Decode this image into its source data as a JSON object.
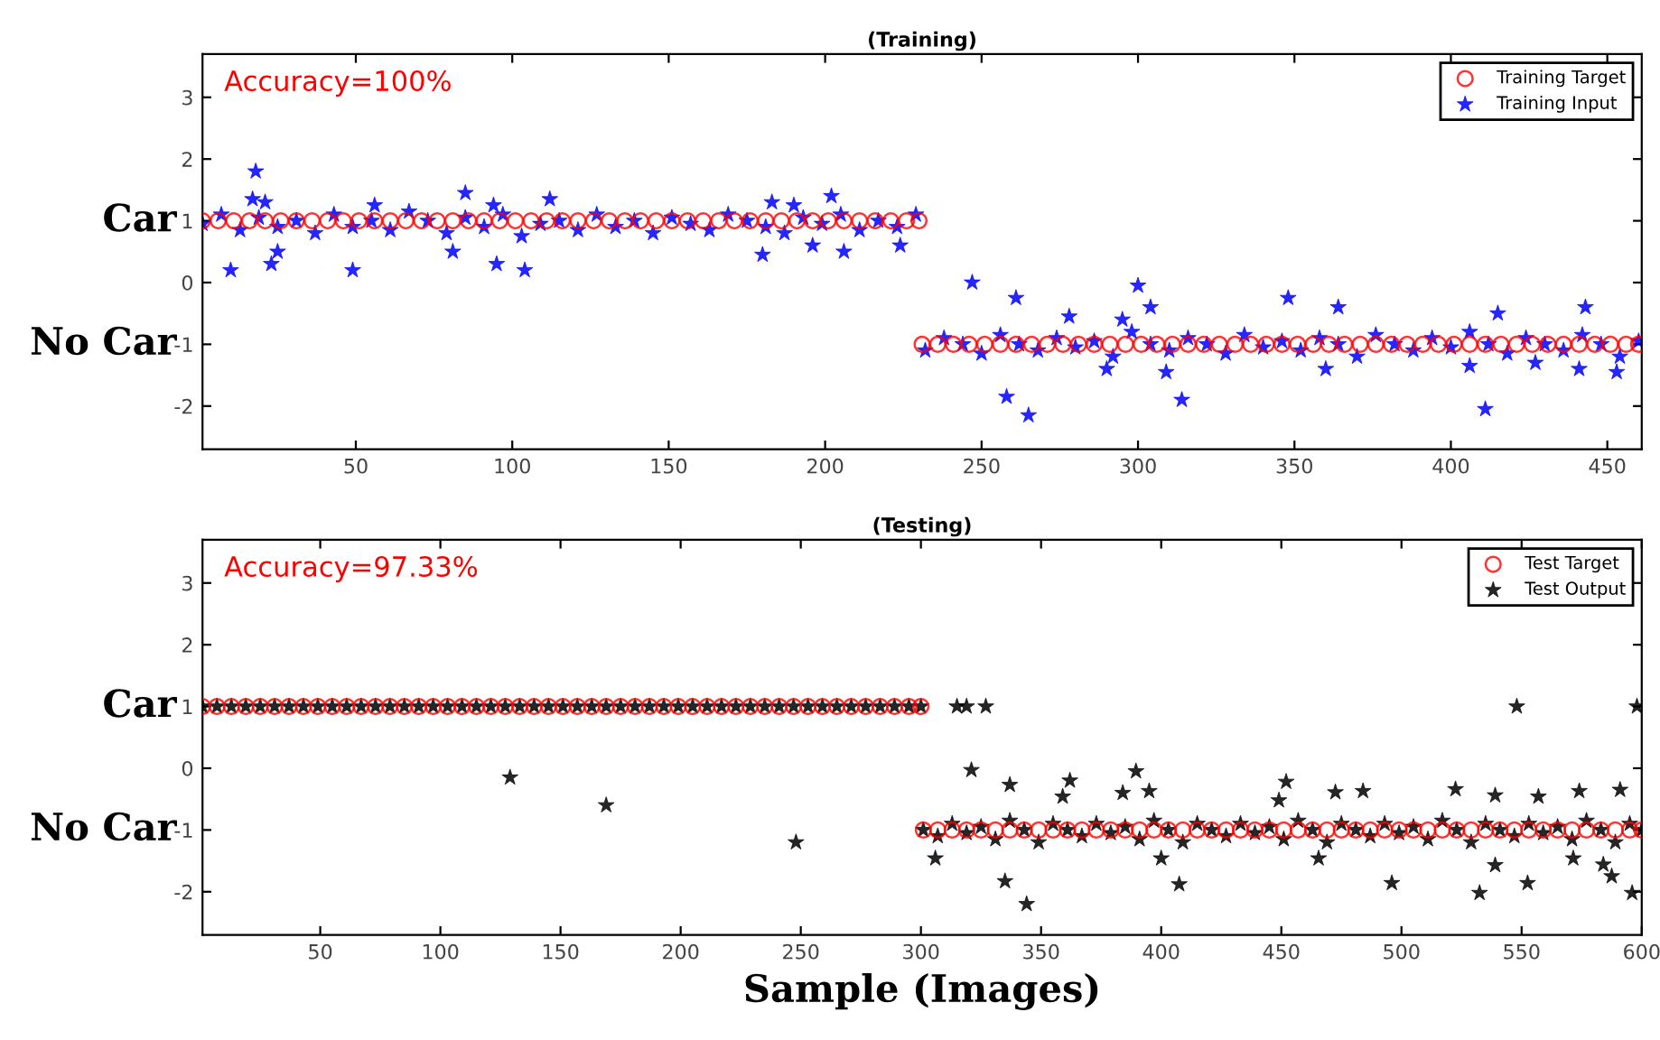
{
  "chart_data": [
    {
      "type": "scatter",
      "title": "(Training)",
      "xlim": [
        1,
        461
      ],
      "xticks": [
        50,
        100,
        150,
        200,
        250,
        300,
        350,
        400,
        450
      ],
      "ylim": [
        -2.7,
        3.7
      ],
      "yticks": [
        -2,
        -1,
        0,
        1,
        2,
        3
      ],
      "legend": "top right",
      "grid": false,
      "annotations": [
        "Accuracy=100%",
        "Car",
        "No Car"
      ],
      "series": [
        {
          "name": "Training Target",
          "color": "#ff0000",
          "marker": "circle",
          "x": [
            1,
            6,
            11,
            16,
            21,
            26,
            31,
            36,
            41,
            46,
            51,
            56,
            61,
            66,
            71,
            76,
            81,
            86,
            91,
            96,
            101,
            106,
            111,
            116,
            121,
            126,
            131,
            136,
            141,
            146,
            151,
            156,
            161,
            166,
            171,
            176,
            181,
            186,
            191,
            196,
            201,
            206,
            211,
            216,
            221,
            226,
            230,
            231,
            236,
            241,
            246,
            251,
            256,
            261,
            266,
            271,
            276,
            281,
            286,
            291,
            296,
            301,
            306,
            311,
            316,
            321,
            326,
            331,
            336,
            341,
            346,
            351,
            356,
            361,
            366,
            371,
            376,
            381,
            386,
            391,
            396,
            401,
            406,
            411,
            416,
            421,
            426,
            431,
            436,
            441,
            446,
            451,
            456,
            460
          ],
          "values": [
            1,
            1,
            1,
            1,
            1,
            1,
            1,
            1,
            1,
            1,
            1,
            1,
            1,
            1,
            1,
            1,
            1,
            1,
            1,
            1,
            1,
            1,
            1,
            1,
            1,
            1,
            1,
            1,
            1,
            1,
            1,
            1,
            1,
            1,
            1,
            1,
            1,
            1,
            1,
            1,
            1,
            1,
            1,
            1,
            1,
            1,
            1,
            -1,
            -1,
            -1,
            -1,
            -1,
            -1,
            -1,
            -1,
            -1,
            -1,
            -1,
            -1,
            -1,
            -1,
            -1,
            -1,
            -1,
            -1,
            -1,
            -1,
            -1,
            -1,
            -1,
            -1,
            -1,
            -1,
            -1,
            -1,
            -1,
            -1,
            -1,
            -1,
            -1,
            -1,
            -1,
            -1,
            -1,
            -1,
            -1,
            -1,
            -1,
            -1,
            -1,
            -1,
            -1,
            -1,
            -1
          ]
        },
        {
          "name": "Training Input",
          "color": "#0000ff",
          "marker": "star",
          "x": [
            1,
            7,
            13,
            19,
            25,
            31,
            37,
            43,
            49,
            55,
            61,
            67,
            73,
            79,
            85,
            91,
            97,
            103,
            109,
            115,
            121,
            127,
            133,
            139,
            145,
            151,
            157,
            163,
            169,
            175,
            181,
            187,
            193,
            199,
            205,
            211,
            217,
            223,
            229,
            10,
            18,
            17,
            21,
            23,
            25,
            49,
            56,
            81,
            85,
            94,
            95,
            104,
            112,
            180,
            183,
            190,
            196,
            202,
            206,
            224,
            232,
            238,
            244,
            250,
            256,
            262,
            268,
            274,
            280,
            286,
            292,
            298,
            304,
            310,
            316,
            322,
            328,
            334,
            340,
            346,
            352,
            358,
            364,
            370,
            376,
            382,
            388,
            394,
            400,
            406,
            412,
            418,
            424,
            430,
            436,
            442,
            448,
            454,
            460,
            247,
            258,
            261,
            265,
            278,
            290,
            295,
            300,
            304,
            309,
            314,
            348,
            360,
            364,
            406,
            411,
            415,
            427,
            441,
            443,
            453
          ],
          "values": [
            0.95,
            1.1,
            0.85,
            1.05,
            0.9,
            1.0,
            0.8,
            1.1,
            0.9,
            1.0,
            0.85,
            1.15,
            1.0,
            0.8,
            1.05,
            0.9,
            1.1,
            0.75,
            0.95,
            1.0,
            0.85,
            1.1,
            0.9,
            1.0,
            0.8,
            1.05,
            0.95,
            0.85,
            1.1,
            1.0,
            0.9,
            0.8,
            1.05,
            0.95,
            1.1,
            0.85,
            1.0,
            0.9,
            1.1,
            0.2,
            1.8,
            1.35,
            1.3,
            0.3,
            0.5,
            0.2,
            1.25,
            0.5,
            1.45,
            1.25,
            0.3,
            0.2,
            1.35,
            0.45,
            1.3,
            1.25,
            0.6,
            1.4,
            0.5,
            0.6,
            -1.1,
            -0.9,
            -1.0,
            -1.15,
            -0.85,
            -1.0,
            -1.1,
            -0.9,
            -1.05,
            -0.95,
            -1.2,
            -0.8,
            -1.0,
            -1.1,
            -0.9,
            -1.0,
            -1.15,
            -0.85,
            -1.05,
            -0.95,
            -1.1,
            -0.9,
            -1.0,
            -1.2,
            -0.85,
            -1.0,
            -1.1,
            -0.9,
            -1.05,
            -0.8,
            -1.0,
            -1.15,
            -0.9,
            -1.0,
            -1.1,
            -0.85,
            -1.0,
            -1.2,
            -0.95,
            0.0,
            -1.85,
            -0.25,
            -2.15,
            -0.55,
            -1.4,
            -0.6,
            -0.05,
            -0.4,
            -1.45,
            -1.9,
            -0.25,
            -1.4,
            -0.4,
            -1.35,
            -2.05,
            -0.5,
            -1.3,
            -1.4,
            -0.4,
            -1.45
          ]
        }
      ]
    },
    {
      "type": "scatter",
      "title": "(Testing)",
      "xlabel": "Sample (Images)",
      "xlim": [
        1,
        600
      ],
      "xticks": [
        50,
        100,
        150,
        200,
        250,
        300,
        350,
        400,
        450,
        500,
        550,
        600
      ],
      "ylim": [
        -2.7,
        3.7
      ],
      "yticks": [
        -2,
        -1,
        0,
        1,
        2,
        3
      ],
      "legend": "top right",
      "grid": false,
      "annotations": [
        "Accuracy=97.33%",
        "Car",
        "No Car"
      ],
      "series": [
        {
          "name": "Test Target",
          "color": "#ff0000",
          "marker": "circle",
          "x": [
            1,
            7,
            13,
            19,
            25,
            31,
            37,
            43,
            49,
            55,
            61,
            67,
            73,
            79,
            85,
            91,
            97,
            103,
            109,
            115,
            121,
            127,
            133,
            139,
            145,
            151,
            157,
            163,
            169,
            175,
            181,
            187,
            193,
            199,
            205,
            211,
            217,
            223,
            229,
            235,
            241,
            247,
            253,
            259,
            265,
            271,
            277,
            283,
            289,
            295,
            300,
            301,
            307,
            313,
            319,
            325,
            331,
            337,
            343,
            349,
            355,
            361,
            367,
            373,
            379,
            385,
            391,
            397,
            403,
            409,
            415,
            421,
            427,
            433,
            439,
            445,
            451,
            457,
            463,
            469,
            475,
            481,
            487,
            493,
            499,
            505,
            511,
            517,
            523,
            529,
            535,
            541,
            547,
            553,
            559,
            565,
            571,
            577,
            583,
            589,
            595,
            600
          ],
          "values": [
            1,
            1,
            1,
            1,
            1,
            1,
            1,
            1,
            1,
            1,
            1,
            1,
            1,
            1,
            1,
            1,
            1,
            1,
            1,
            1,
            1,
            1,
            1,
            1,
            1,
            1,
            1,
            1,
            1,
            1,
            1,
            1,
            1,
            1,
            1,
            1,
            1,
            1,
            1,
            1,
            1,
            1,
            1,
            1,
            1,
            1,
            1,
            1,
            1,
            1,
            1,
            -1,
            -1,
            -1,
            -1,
            -1,
            -1,
            -1,
            -1,
            -1,
            -1,
            -1,
            -1,
            -1,
            -1,
            -1,
            -1,
            -1,
            -1,
            -1,
            -1,
            -1,
            -1,
            -1,
            -1,
            -1,
            -1,
            -1,
            -1,
            -1,
            -1,
            -1,
            -1,
            -1,
            -1,
            -1,
            -1,
            -1,
            -1,
            -1,
            -1,
            -1,
            -1,
            -1,
            -1,
            -1,
            -1,
            -1,
            -1,
            -1,
            -1,
            -1
          ]
        },
        {
          "name": "Test Output",
          "color": "#000000",
          "marker": "star",
          "x": [
            1,
            7,
            13,
            19,
            25,
            31,
            37,
            43,
            49,
            55,
            61,
            67,
            73,
            79,
            85,
            91,
            97,
            103,
            109,
            115,
            121,
            127,
            133,
            139,
            145,
            151,
            157,
            163,
            169,
            175,
            181,
            187,
            193,
            199,
            205,
            211,
            217,
            223,
            229,
            235,
            241,
            247,
            253,
            259,
            265,
            271,
            277,
            283,
            289,
            295,
            300,
            129,
            169,
            248,
            301,
            307,
            313,
            319,
            325,
            331,
            337,
            343,
            349,
            355,
            361,
            367,
            373,
            379,
            385,
            391,
            397,
            403,
            409,
            415,
            421,
            427,
            433,
            439,
            445,
            451,
            457,
            463,
            469,
            475,
            481,
            487,
            493,
            499,
            505,
            511,
            517,
            523,
            529,
            535,
            541,
            547,
            553,
            559,
            565,
            571,
            577,
            583,
            589,
            595,
            600,
            315,
            319,
            327,
            548,
            598,
            321,
            337,
            362,
            359,
            389.5,
            384,
            395,
            335,
            344,
            407.5,
            306,
            400,
            449,
            452,
            472.5,
            484,
            465.5,
            496,
            522.5,
            532.5,
            539,
            539,
            552.5,
            557,
            574,
            587.5,
            591,
            596,
            571.5,
            584
          ],
          "values": [
            1,
            1,
            1,
            1,
            1,
            1,
            1,
            1,
            1,
            1,
            1,
            1,
            1,
            1,
            1,
            1,
            1,
            1,
            1,
            1,
            1,
            1,
            1,
            1,
            1,
            1,
            1,
            1,
            1,
            1,
            1,
            1,
            1,
            1,
            1,
            1,
            1,
            1,
            1,
            1,
            1,
            1,
            1,
            1,
            1,
            1,
            1,
            1,
            1,
            1,
            1,
            -0.15,
            -0.6,
            -1.2,
            -1.0,
            -1.1,
            -0.9,
            -1.05,
            -0.95,
            -1.15,
            -0.85,
            -1.0,
            -1.2,
            -0.9,
            -1.0,
            -1.1,
            -0.9,
            -1.05,
            -0.95,
            -1.15,
            -0.85,
            -1.0,
            -1.2,
            -0.9,
            -1.0,
            -1.1,
            -0.9,
            -1.05,
            -0.95,
            -1.15,
            -0.85,
            -1.0,
            -1.2,
            -0.9,
            -1.0,
            -1.1,
            -0.9,
            -1.05,
            -0.95,
            -1.15,
            -0.85,
            -1.0,
            -1.2,
            -0.9,
            -1.0,
            -1.1,
            -0.9,
            -1.05,
            -0.95,
            -1.15,
            -0.85,
            -1.0,
            -1.2,
            -0.9,
            -1.0,
            1,
            1,
            1,
            1,
            1,
            -0.03,
            -0.27,
            -0.2,
            -0.46,
            -0.05,
            -0.4,
            -0.37,
            -1.83,
            -2.2,
            -1.88,
            -1.46,
            -1.46,
            -0.52,
            -0.22,
            -0.39,
            -0.37,
            -1.46,
            -1.86,
            -0.34,
            -2.02,
            -0.44,
            -1.57,
            -1.86,
            -0.46,
            -0.37,
            -1.75,
            -0.35,
            -2.02,
            -1.46,
            -1.56
          ]
        }
      ]
    }
  ]
}
